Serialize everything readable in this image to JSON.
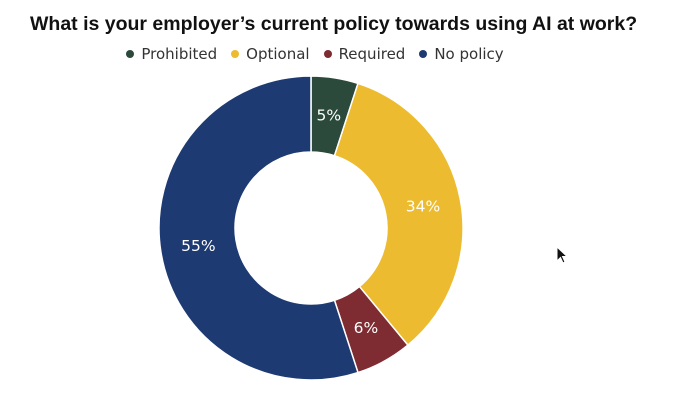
{
  "title": "What is your employer’s current policy towards using AI at work?",
  "chart_data": {
    "type": "pie",
    "donut": true,
    "title": "What is your employer’s current policy towards using AI at work?",
    "legend_position": "top-center",
    "categories": [
      "Prohibited",
      "Optional",
      "Required",
      "No policy"
    ],
    "values": [
      5,
      34,
      6,
      55
    ],
    "labels": [
      "5%",
      "34%",
      "6%",
      "55%"
    ],
    "colors": [
      "#2b4a3c",
      "#ecbb30",
      "#7e2b32",
      "#1e3a72"
    ]
  },
  "legend": [
    {
      "label": "Prohibited",
      "color": "#2b4a3c"
    },
    {
      "label": "Optional",
      "color": "#ecbb30"
    },
    {
      "label": "Required",
      "color": "#7e2b32"
    },
    {
      "label": "No policy",
      "color": "#1e3a72"
    }
  ]
}
